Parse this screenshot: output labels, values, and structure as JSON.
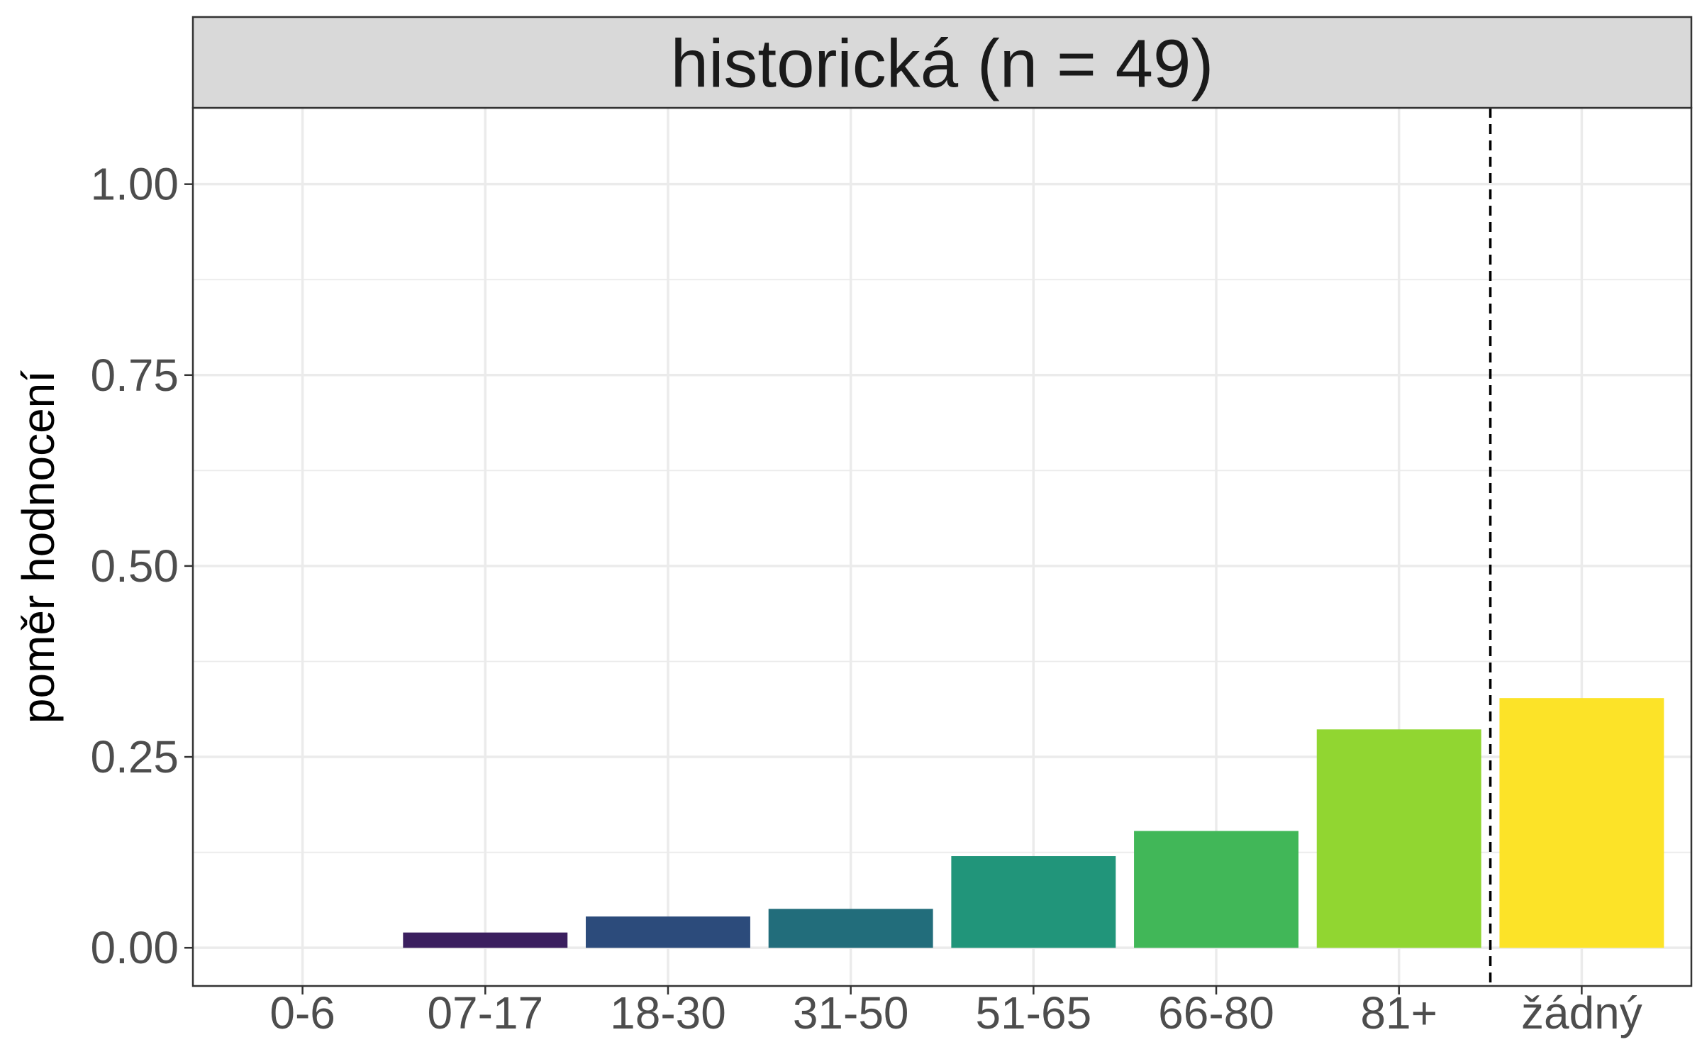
{
  "chart_data": {
    "type": "bar",
    "title": "historická (n = 49)",
    "xlabel": "",
    "ylabel": "poměr hodnocení",
    "categories": [
      "0-6",
      "07-17",
      "18-30",
      "31-50",
      "51-65",
      "66-80",
      "81+",
      "žádný"
    ],
    "values": [
      0.0,
      0.02,
      0.041,
      0.051,
      0.12,
      0.153,
      0.286,
      0.327
    ],
    "colors": [
      "#440154",
      "#3b1f5f",
      "#2c4b7b",
      "#226d7b",
      "#21957a",
      "#41b758",
      "#91d631",
      "#fce328"
    ],
    "ylim": [
      -0.05,
      1.1
    ],
    "yticks": [
      0.0,
      0.25,
      0.5,
      0.75,
      1.0
    ],
    "ytick_labels": [
      "0.00",
      "0.25",
      "0.50",
      "0.75",
      "1.00"
    ],
    "grid": true,
    "reference_line": {
      "style": "dashed",
      "between": [
        "81+",
        "žádný"
      ]
    }
  }
}
